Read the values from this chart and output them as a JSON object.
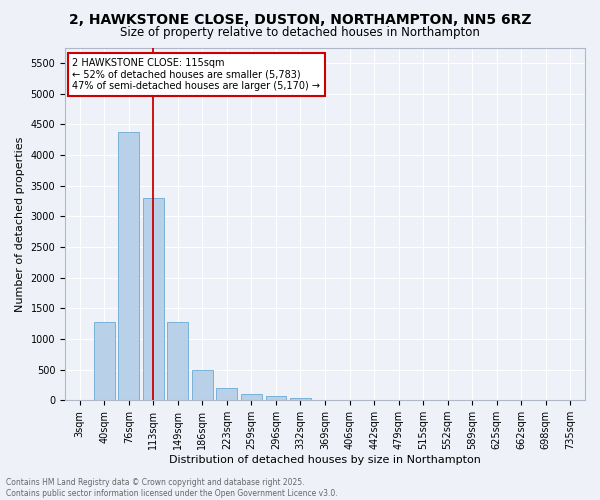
{
  "title_line1": "2, HAWKSTONE CLOSE, DUSTON, NORTHAMPTON, NN5 6RZ",
  "title_line2": "Size of property relative to detached houses in Northampton",
  "xlabel": "Distribution of detached houses by size in Northampton",
  "ylabel": "Number of detached properties",
  "bar_color": "#b8d0e8",
  "bar_edge_color": "#6aaad4",
  "vline_color": "#cc0000",
  "vline_x_index": 3,
  "categories": [
    "3sqm",
    "40sqm",
    "76sqm",
    "113sqm",
    "149sqm",
    "186sqm",
    "223sqm",
    "259sqm",
    "296sqm",
    "332sqm",
    "369sqm",
    "406sqm",
    "442sqm",
    "479sqm",
    "515sqm",
    "552sqm",
    "589sqm",
    "625sqm",
    "662sqm",
    "698sqm",
    "735sqm"
  ],
  "values": [
    0,
    1270,
    4380,
    3300,
    1280,
    500,
    200,
    100,
    70,
    30,
    10,
    0,
    0,
    0,
    0,
    0,
    0,
    0,
    0,
    0,
    0
  ],
  "ylim": [
    0,
    5750
  ],
  "yticks": [
    0,
    500,
    1000,
    1500,
    2000,
    2500,
    3000,
    3500,
    4000,
    4500,
    5000,
    5500
  ],
  "annotation_text": "2 HAWKSTONE CLOSE: 115sqm\n← 52% of detached houses are smaller (5,783)\n47% of semi-detached houses are larger (5,170) →",
  "annotation_box_color": "#ffffff",
  "annotation_box_edge": "#cc0000",
  "footer_line1": "Contains HM Land Registry data © Crown copyright and database right 2025.",
  "footer_line2": "Contains public sector information licensed under the Open Government Licence v3.0.",
  "bg_color": "#eef2f8",
  "grid_color": "#ffffff",
  "title_fontsize": 10,
  "subtitle_fontsize": 8.5,
  "axis_label_fontsize": 8,
  "tick_fontsize": 7,
  "annotation_fontsize": 7,
  "footer_fontsize": 5.5
}
